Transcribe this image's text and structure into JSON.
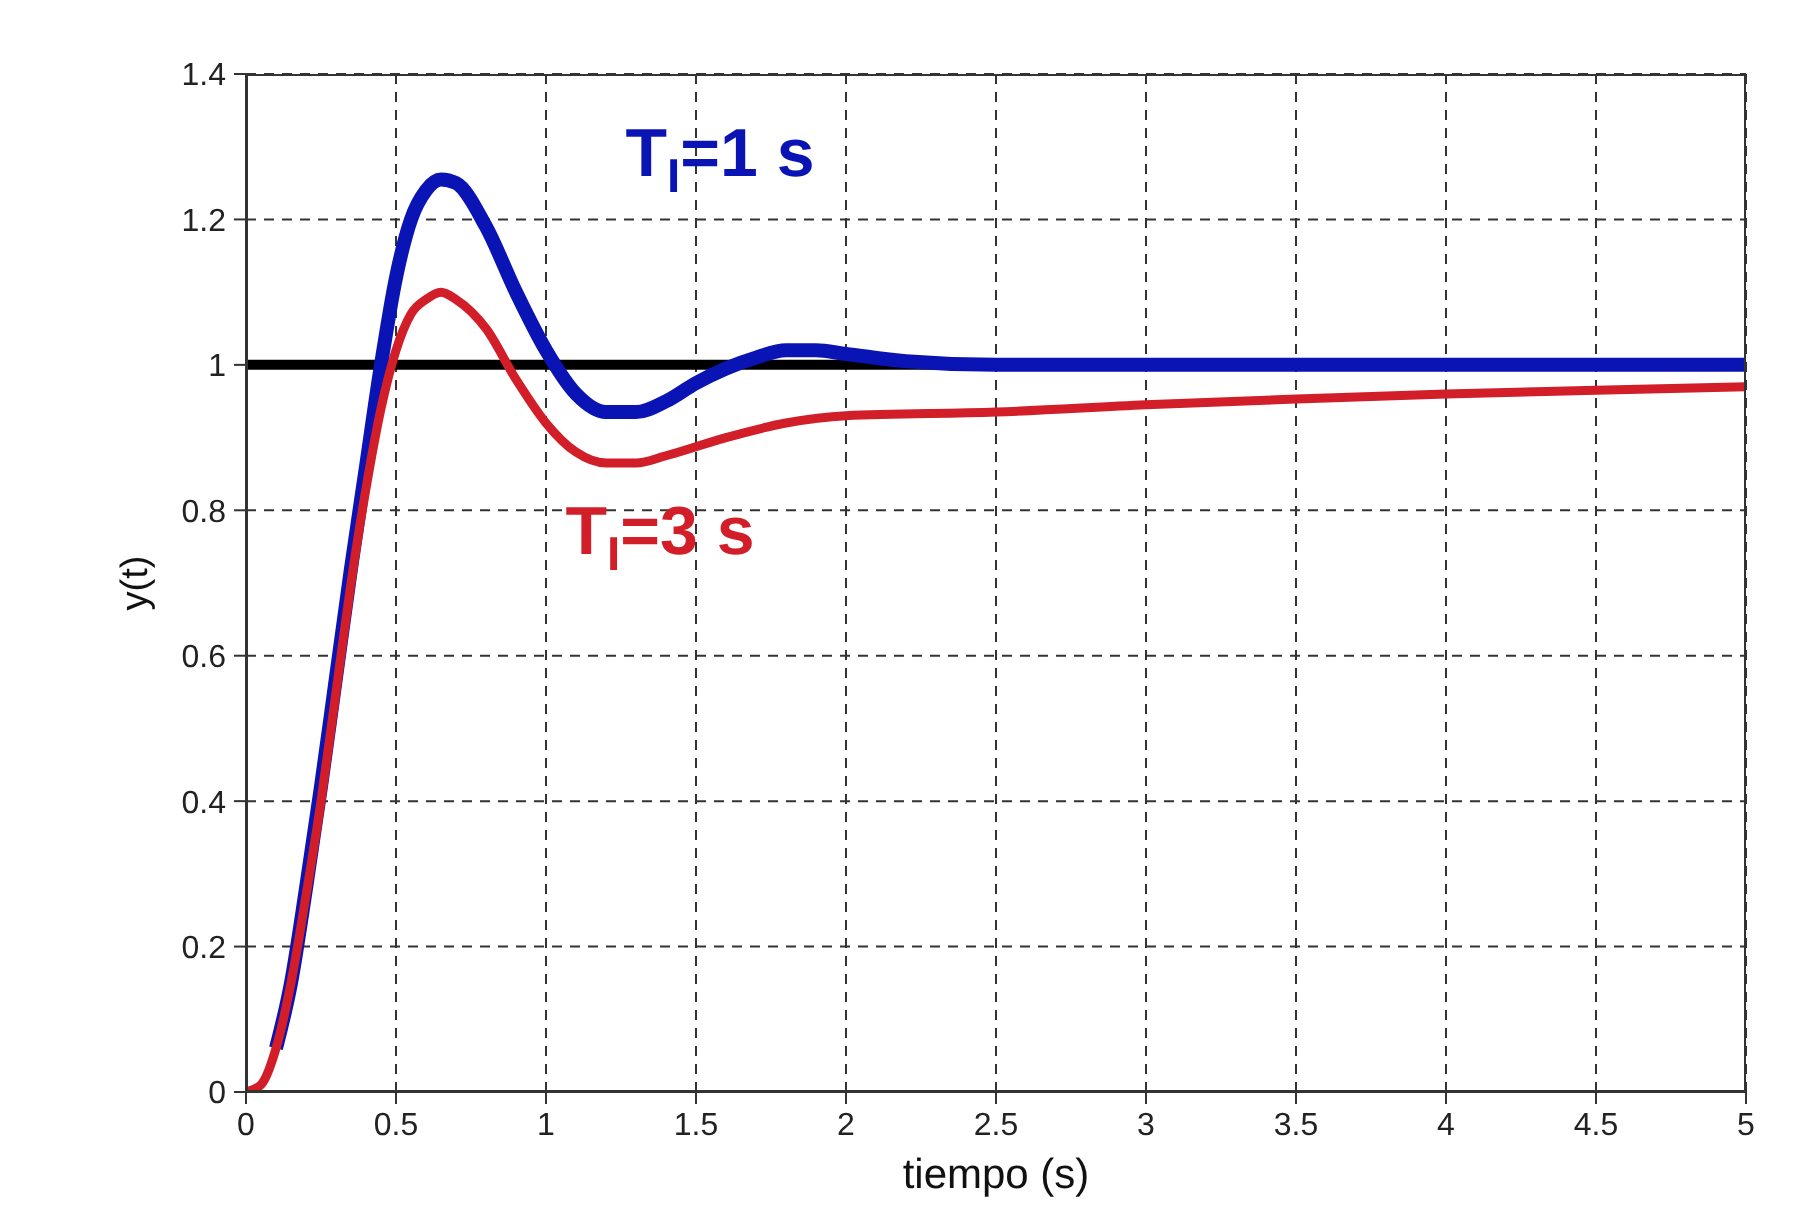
{
  "chart_data": {
    "type": "line",
    "xlabel": "tiempo (s)",
    "ylabel": "y(t)",
    "xlim": [
      0,
      5
    ],
    "xticks": [
      0,
      0.5,
      1,
      1.5,
      2,
      2.5,
      3,
      3.5,
      4,
      4.5,
      5
    ],
    "ylim": [
      0,
      1.4
    ],
    "yticks": [
      0,
      0.2,
      0.4,
      0.6,
      0.8,
      1,
      1.2,
      1.4
    ],
    "grid": true,
    "legend": false,
    "line_style": "solid",
    "marker": "none",
    "ref_lines": [
      {
        "axis": "y",
        "value": 1,
        "color": "#000000"
      }
    ],
    "series": [
      {
        "name": "T$_{I}$=1 s",
        "color": "#0a14b4",
        "x": [
          0.1,
          0.15,
          0.2,
          0.25,
          0.3,
          0.35,
          0.4,
          0.45,
          0.5,
          0.55,
          0.6,
          0.65,
          0.7,
          0.8,
          0.9,
          1.0,
          1.1,
          1.2,
          1.3,
          1.4,
          1.5,
          1.6,
          1.7,
          1.8,
          1.9,
          2.0,
          2.2,
          2.5,
          3,
          3.5,
          4,
          4.5,
          5
        ],
        "values": [
          0.06,
          0.15,
          0.28,
          0.42,
          0.57,
          0.72,
          0.86,
          1.0,
          1.12,
          1.2,
          1.24,
          1.255,
          1.25,
          1.19,
          1.1,
          1.02,
          0.96,
          0.935,
          0.935,
          0.95,
          0.975,
          0.995,
          1.01,
          1.02,
          1.02,
          1.015,
          1.005,
          1.0,
          1.0,
          1.0,
          1.0,
          1.0,
          1.0
        ]
      },
      {
        "name": "T$_{I}$=3 s",
        "color": "#d21e28",
        "x": [
          0,
          0.05,
          0.1,
          0.15,
          0.2,
          0.25,
          0.3,
          0.35,
          0.4,
          0.45,
          0.5,
          0.55,
          0.6,
          0.65,
          0.7,
          0.8,
          0.9,
          1.0,
          1.1,
          1.2,
          1.3,
          1.4,
          1.6,
          1.8,
          2.0,
          2.5,
          3,
          3.5,
          4,
          4.5,
          5
        ],
        "values": [
          0,
          0.01,
          0.06,
          0.15,
          0.27,
          0.4,
          0.55,
          0.7,
          0.83,
          0.94,
          1.02,
          1.07,
          1.09,
          1.1,
          1.09,
          1.05,
          0.98,
          0.92,
          0.88,
          0.865,
          0.865,
          0.875,
          0.9,
          0.92,
          0.93,
          0.935,
          0.945,
          0.953,
          0.96,
          0.965,
          0.97
        ]
      }
    ]
  }
}
